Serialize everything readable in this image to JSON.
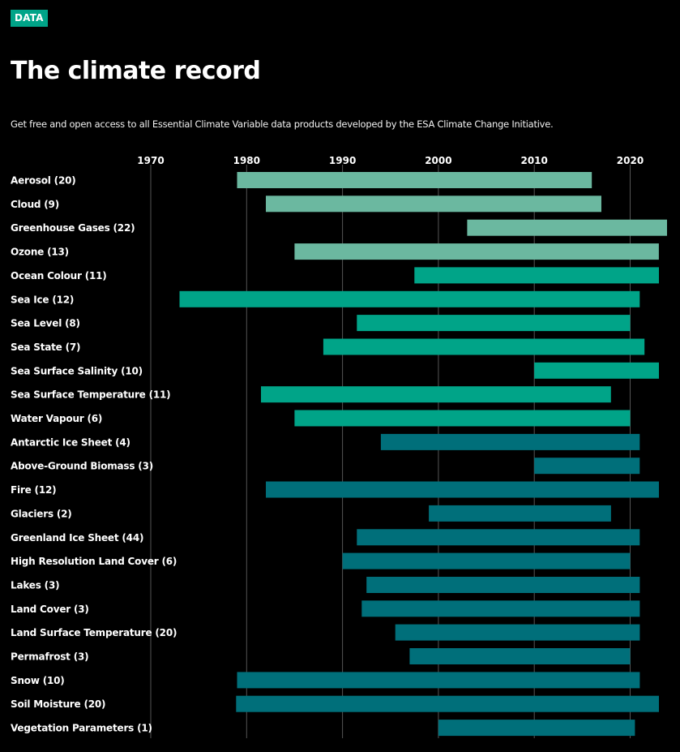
{
  "header": {
    "badge": "DATA",
    "title": "The climate record",
    "subtitle": "Get free and open access to all Essential Climate Variable data products developed by the ESA Climate Change Initiative."
  },
  "colors": {
    "atmosphere": "#6bb8a0",
    "ocean": "#00a488",
    "land": "#006f7a",
    "grid": "#555555",
    "badge": "#00a488"
  },
  "chart_data": {
    "type": "bar",
    "orientation": "horizontal-range",
    "xlim": [
      1970,
      2024
    ],
    "xticks": [
      1970,
      1980,
      1990,
      2000,
      2010,
      2020
    ],
    "grid": true,
    "series": [
      {
        "category": "Aerosol (20)",
        "start": 1979,
        "end": 2016,
        "group": "atmosphere"
      },
      {
        "category": "Cloud (9)",
        "start": 1982,
        "end": 2017,
        "group": "atmosphere"
      },
      {
        "category": "Greenhouse Gases (22)",
        "start": 2003,
        "end": 2024,
        "group": "atmosphere"
      },
      {
        "category": "Ozone (13)",
        "start": 1985,
        "end": 2023,
        "group": "atmosphere"
      },
      {
        "category": "Ocean Colour (11)",
        "start": 1997.5,
        "end": 2023,
        "group": "ocean"
      },
      {
        "category": "Sea Ice (12)",
        "start": 1973,
        "end": 2021,
        "group": "ocean"
      },
      {
        "category": "Sea Level (8)",
        "start": 1991.5,
        "end": 2020,
        "group": "ocean"
      },
      {
        "category": "Sea State (7)",
        "start": 1988,
        "end": 2021.5,
        "group": "ocean"
      },
      {
        "category": "Sea Surface Salinity (10)",
        "start": 2010,
        "end": 2023,
        "group": "ocean"
      },
      {
        "category": "Sea Surface Temperature (11)",
        "start": 1981.5,
        "end": 2018,
        "group": "ocean"
      },
      {
        "category": "Water Vapour (6)",
        "start": 1985,
        "end": 2020,
        "group": "ocean"
      },
      {
        "category": "Antarctic Ice Sheet (4)",
        "start": 1994,
        "end": 2021,
        "group": "land"
      },
      {
        "category": "Above-Ground Biomass (3)",
        "start": 2010,
        "end": 2021,
        "group": "land"
      },
      {
        "category": "Fire (12)",
        "start": 1982,
        "end": 2023,
        "group": "land"
      },
      {
        "category": "Glaciers (2)",
        "start": 1999,
        "end": 2018,
        "group": "land"
      },
      {
        "category": "Greenland Ice Sheet (44)",
        "start": 1991.5,
        "end": 2021,
        "group": "land"
      },
      {
        "category": "High Resolution Land Cover (6)",
        "start": 1990,
        "end": 2020,
        "group": "land"
      },
      {
        "category": "Lakes (3)",
        "start": 1992.5,
        "end": 2021,
        "group": "land"
      },
      {
        "category": "Land Cover (3)",
        "start": 1992,
        "end": 2021,
        "group": "land"
      },
      {
        "category": "Land Surface Temperature (20)",
        "start": 1995.5,
        "end": 2021,
        "group": "land"
      },
      {
        "category": "Permafrost (3)",
        "start": 1997,
        "end": 2020,
        "group": "land"
      },
      {
        "category": "Snow (10)",
        "start": 1979,
        "end": 2021,
        "group": "land"
      },
      {
        "category": "Soil Moisture (20)",
        "start": 1978.9,
        "end": 2023,
        "group": "land"
      },
      {
        "category": "Vegetation Parameters (1)",
        "start": 2000,
        "end": 2020.5,
        "group": "land"
      }
    ]
  }
}
